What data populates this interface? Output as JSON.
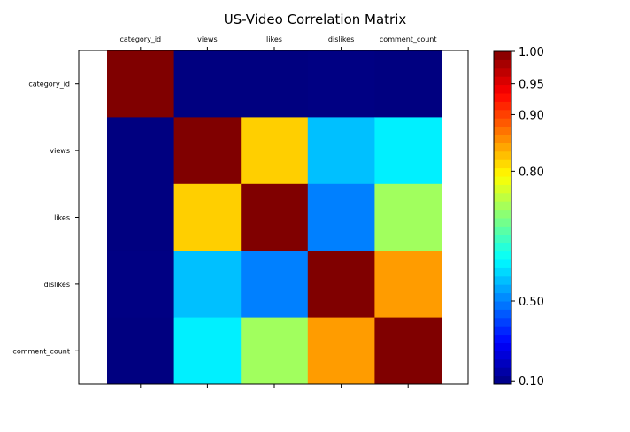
{
  "chart_data": {
    "type": "heatmap",
    "title": "US-Video Correlation Matrix",
    "x_categories": [
      "category_id",
      "views",
      "likes",
      "dislikes",
      "comment_count"
    ],
    "y_categories": [
      "category_id",
      "views",
      "likes",
      "dislikes",
      "comment_count"
    ],
    "values": [
      [
        1.0,
        0.0,
        0.0,
        0.06,
        0.03
      ],
      [
        0.0,
        1.0,
        0.82,
        0.56,
        0.6
      ],
      [
        0.0,
        0.82,
        1.0,
        0.5,
        0.73
      ],
      [
        0.06,
        0.56,
        0.5,
        1.0,
        0.85
      ],
      [
        0.03,
        0.6,
        0.73,
        0.85,
        1.0
      ]
    ],
    "colormap": "jet",
    "colorbar": {
      "ticks": [
        0.1,
        0.5,
        0.8,
        0.9,
        0.95,
        1.0
      ],
      "tick_labels": [
        "0.10",
        "0.50",
        "0.80",
        "0.90",
        "0.95",
        "1.00"
      ],
      "nonlinear": true
    }
  }
}
